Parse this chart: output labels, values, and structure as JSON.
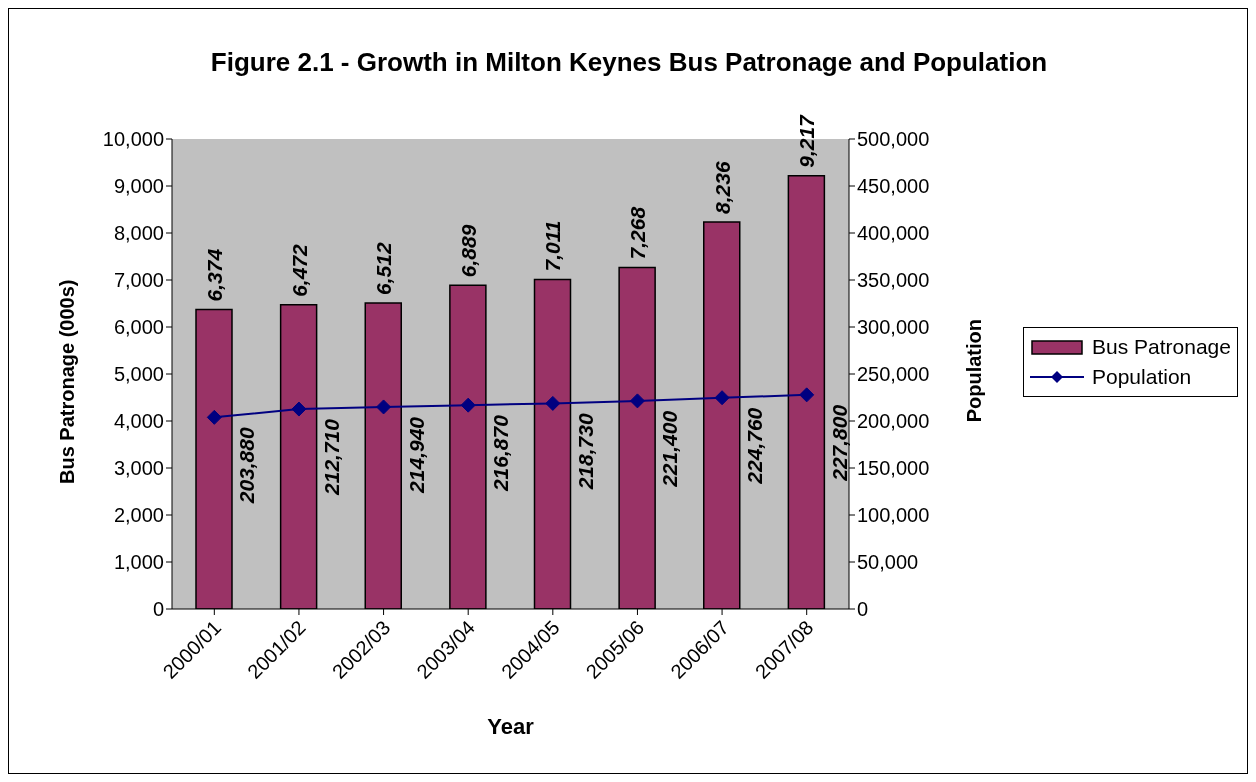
{
  "chart_data": {
    "type": "bar",
    "title": "Figure 2.1 - Growth in Milton Keynes Bus Patronage and Population",
    "xlabel": "Year",
    "ylabel": "Bus Patronage (000s)",
    "y2label": "Population",
    "categories": [
      "2000/01",
      "2001/02",
      "2002/03",
      "2003/04",
      "2004/05",
      "2005/06",
      "2006/07",
      "2007/08"
    ],
    "series": [
      {
        "name": "Bus Patronage",
        "color": "#993366",
        "values": [
          6374,
          6472,
          6512,
          6889,
          7011,
          7268,
          8236,
          9217
        ],
        "value_labels": [
          "6,374",
          "6,472",
          "6,512",
          "6,889",
          "7,011",
          "7,268",
          "8,236",
          "9,217"
        ]
      },
      {
        "name": "Population",
        "type": "line",
        "axis": "y2",
        "color": "#000080",
        "marker": "diamond",
        "values": [
          203880,
          212710,
          214940,
          216870,
          218730,
          221400,
          224760,
          227800
        ],
        "value_labels": [
          "203,880",
          "212,710",
          "214,940",
          "216,870",
          "218,730",
          "221,400",
          "224,760",
          "227,800"
        ]
      }
    ],
    "ylim": [
      0,
      10000
    ],
    "yticks": [
      0,
      {
        "value": 1000,
        "label": "1,000"
      },
      {
        "value": 2000,
        "label": "2,000"
      },
      {
        "value": 3000,
        "label": "3,000"
      },
      {
        "value": 4000,
        "label": "4,000"
      },
      {
        "value": 5000,
        "label": "5,000"
      },
      {
        "value": 6000,
        "label": "6,000"
      },
      {
        "value": 7000,
        "label": "7,000"
      },
      {
        "value": 8000,
        "label": "8,000"
      },
      {
        "value": 9000,
        "label": "9,000"
      },
      {
        "value": 10000,
        "label": "10,000"
      }
    ],
    "y2lim": [
      0,
      500000
    ],
    "y2ticks": [
      0,
      {
        "value": 50000,
        "label": "50,000"
      },
      {
        "value": 100000,
        "label": "100,000"
      },
      {
        "value": 150000,
        "label": "150,000"
      },
      {
        "value": 200000,
        "label": "200,000"
      },
      {
        "value": 250000,
        "label": "250,000"
      },
      {
        "value": 300000,
        "label": "300,000"
      },
      {
        "value": 350000,
        "label": "350,000"
      },
      {
        "value": 400000,
        "label": "400,000"
      },
      {
        "value": 450000,
        "label": "450,000"
      },
      {
        "value": 500000,
        "label": "500,000"
      }
    ],
    "legend": "right",
    "grid": false
  }
}
